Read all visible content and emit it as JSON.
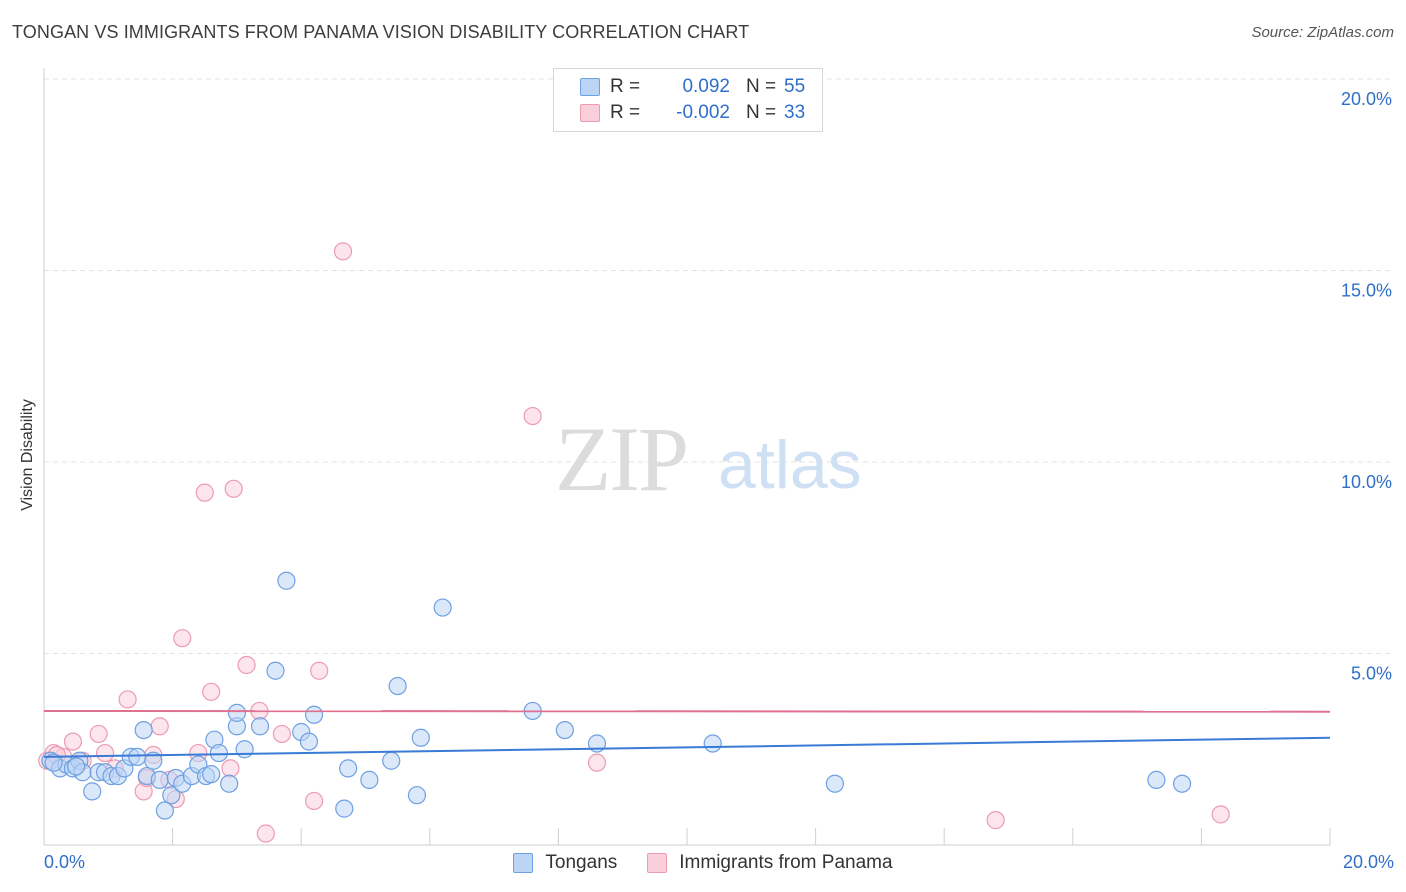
{
  "header": {
    "title": "TONGAN VS IMMIGRANTS FROM PANAMA VISION DISABILITY CORRELATION CHART",
    "source": "Source: ZipAtlas.com"
  },
  "watermark": {
    "zip": "ZIP",
    "atlas": "atlas"
  },
  "legend": {
    "rows": [
      {
        "r_label": "R =",
        "r_value": "0.092",
        "n_label": "N =",
        "n_value": "55",
        "color": "#a9c8f0"
      },
      {
        "r_label": "R =",
        "r_value": "-0.002",
        "n_label": "N =",
        "n_value": "33",
        "color": "#f6b8cb"
      }
    ]
  },
  "chart_data": {
    "type": "scatter",
    "title": "TONGAN VS IMMIGRANTS FROM PANAMA VISION DISABILITY CORRELATION CHART",
    "xlabel": "",
    "ylabel": "Vision Disability",
    "xlim": [
      0,
      20
    ],
    "ylim": [
      0,
      20
    ],
    "x_tick_labels": [
      "0.0%",
      "20.0%"
    ],
    "y_ticks": [
      {
        "value": 5,
        "label": "5.0%"
      },
      {
        "value": 10,
        "label": "10.0%"
      },
      {
        "value": 15,
        "label": "15.0%"
      },
      {
        "value": 20,
        "label": "20.0%"
      }
    ],
    "grid": true,
    "legend_position": "bottom",
    "colors": {
      "tongans": "#3a7bd5",
      "panama": "#e0708f"
    },
    "series": [
      {
        "name": "Tongans",
        "stroke": "#6fa0e2",
        "fill": "#bcd5f5",
        "trend": [
          [
            0,
            2.3
          ],
          [
            20,
            2.8
          ]
        ],
        "points": [
          [
            0.1,
            2.2
          ],
          [
            0.25,
            2.0
          ],
          [
            0.35,
            2.1
          ],
          [
            0.45,
            2.0
          ],
          [
            0.55,
            2.2
          ],
          [
            0.6,
            1.9
          ],
          [
            0.75,
            1.4
          ],
          [
            0.85,
            1.9
          ],
          [
            0.95,
            1.9
          ],
          [
            1.05,
            1.8
          ],
          [
            1.15,
            1.8
          ],
          [
            1.25,
            2.0
          ],
          [
            1.35,
            2.3
          ],
          [
            1.45,
            2.3
          ],
          [
            1.55,
            3.0
          ],
          [
            1.6,
            1.8
          ],
          [
            1.7,
            2.2
          ],
          [
            1.8,
            1.7
          ],
          [
            1.88,
            0.9
          ],
          [
            1.98,
            1.3
          ],
          [
            2.05,
            1.75
          ],
          [
            2.15,
            1.6
          ],
          [
            2.3,
            1.8
          ],
          [
            2.4,
            2.1
          ],
          [
            2.52,
            1.8
          ],
          [
            2.6,
            1.85
          ],
          [
            2.65,
            2.75
          ],
          [
            2.72,
            2.4
          ],
          [
            2.88,
            1.6
          ],
          [
            3.0,
            3.1
          ],
          [
            3.0,
            3.45
          ],
          [
            3.12,
            2.5
          ],
          [
            3.36,
            3.1
          ],
          [
            3.6,
            4.55
          ],
          [
            3.77,
            6.9
          ],
          [
            4.0,
            2.95
          ],
          [
            4.12,
            2.7
          ],
          [
            4.2,
            3.4
          ],
          [
            4.67,
            0.95
          ],
          [
            4.73,
            2.0
          ],
          [
            5.06,
            1.7
          ],
          [
            5.4,
            2.2
          ],
          [
            5.5,
            4.15
          ],
          [
            5.8,
            1.3
          ],
          [
            5.86,
            2.8
          ],
          [
            6.2,
            6.2
          ],
          [
            7.6,
            3.5
          ],
          [
            8.1,
            3.0
          ],
          [
            8.6,
            2.65
          ],
          [
            10.4,
            2.65
          ],
          [
            12.3,
            1.6
          ],
          [
            17.3,
            1.7
          ],
          [
            17.7,
            1.6
          ],
          [
            0.15,
            2.15
          ],
          [
            0.5,
            2.05
          ]
        ]
      },
      {
        "name": "Immigrants from Panama",
        "stroke": "#ec9bb3",
        "fill": "#f9cfdc",
        "trend": [
          [
            0,
            3.5
          ],
          [
            20,
            3.48
          ]
        ],
        "points": [
          [
            0.05,
            2.2
          ],
          [
            0.15,
            2.4
          ],
          [
            0.3,
            2.3
          ],
          [
            0.45,
            2.7
          ],
          [
            0.6,
            2.2
          ],
          [
            0.85,
            2.9
          ],
          [
            0.95,
            2.4
          ],
          [
            1.1,
            2.0
          ],
          [
            1.3,
            3.8
          ],
          [
            1.55,
            1.4
          ],
          [
            1.7,
            2.35
          ],
          [
            1.8,
            3.1
          ],
          [
            1.95,
            1.7
          ],
          [
            2.05,
            1.2
          ],
          [
            2.15,
            5.4
          ],
          [
            2.4,
            2.4
          ],
          [
            2.5,
            9.2
          ],
          [
            2.6,
            4.0
          ],
          [
            2.9,
            2.0
          ],
          [
            2.95,
            9.3
          ],
          [
            3.15,
            4.7
          ],
          [
            3.35,
            3.5
          ],
          [
            3.45,
            0.3
          ],
          [
            3.7,
            2.9
          ],
          [
            4.2,
            1.15
          ],
          [
            4.28,
            4.55
          ],
          [
            4.65,
            15.5
          ],
          [
            7.6,
            11.2
          ],
          [
            8.6,
            2.15
          ],
          [
            14.8,
            0.65
          ],
          [
            18.3,
            0.8
          ],
          [
            0.2,
            2.35
          ],
          [
            1.6,
            1.75
          ]
        ]
      }
    ]
  }
}
